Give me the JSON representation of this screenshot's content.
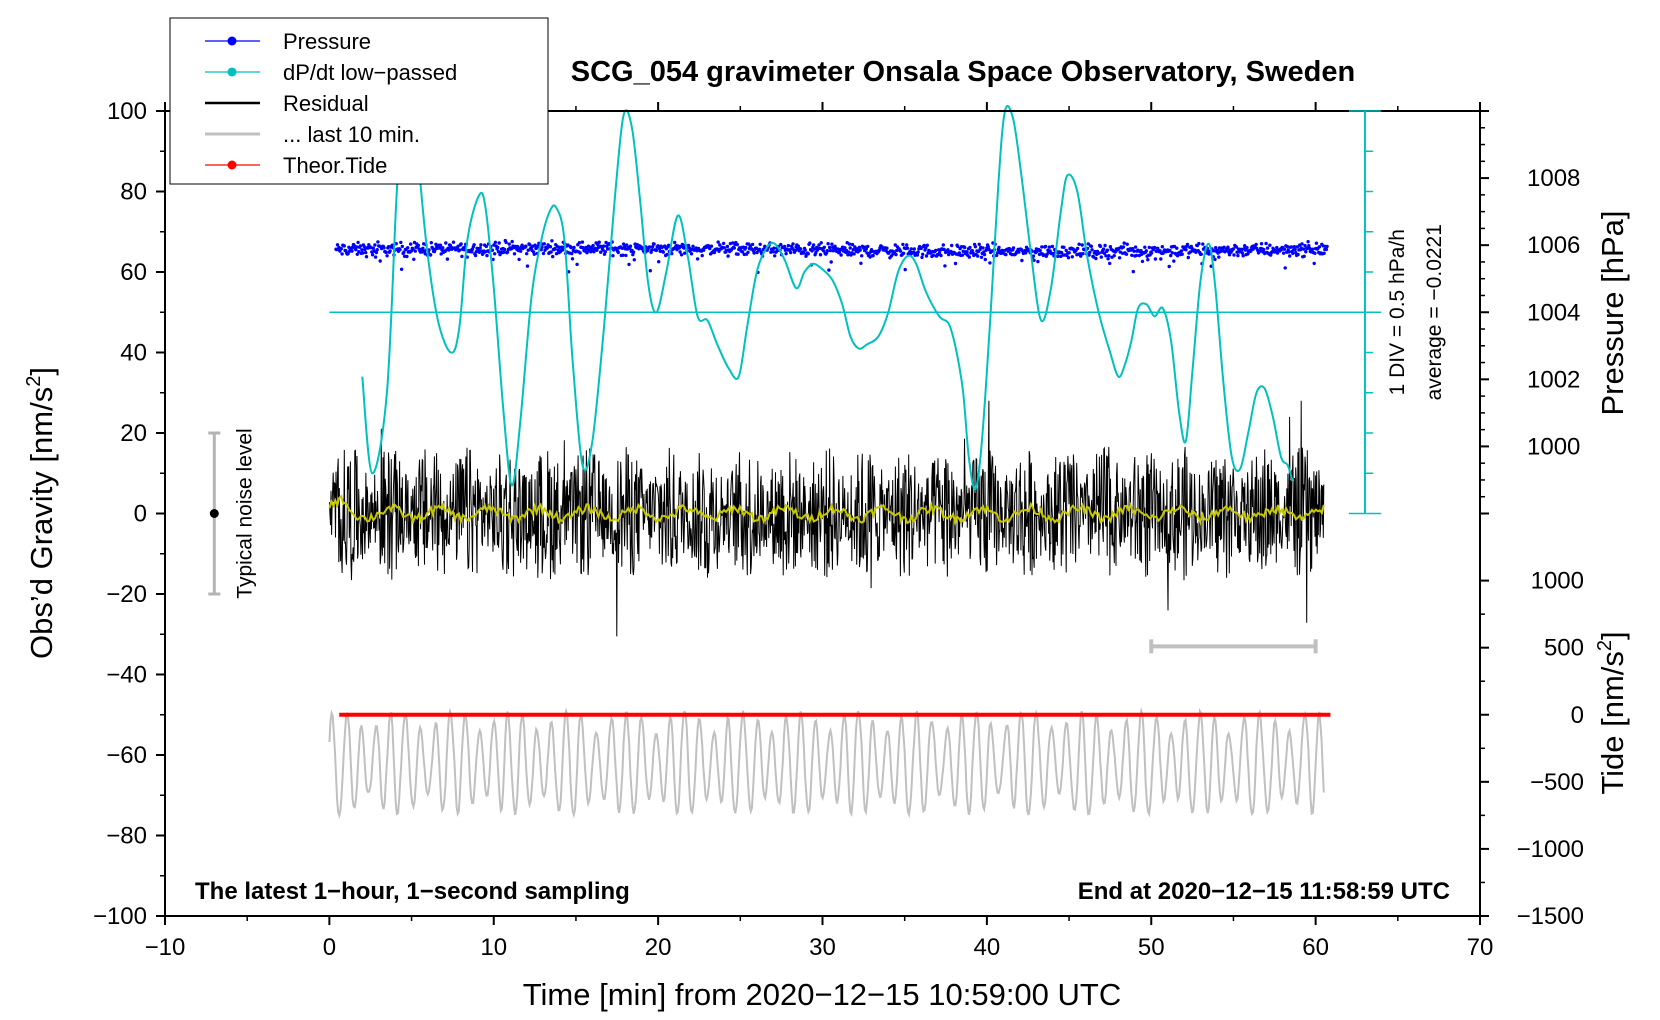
{
  "chart_data": {
    "type": "line",
    "title": "SCG_054 gravimeter Onsala Space Observatory, Sweden",
    "xlabel": "Time [min] from 2020−12−15 10:59:00 UTC",
    "ylabel": "Obs’d Gravity [nm/s²]",
    "ylabel_parts": {
      "main": "Obs’d Gravity [nm/s",
      "sup": "2",
      "end": "]"
    },
    "y2label_pressure": "Pressure [hPa]",
    "y2label_tide": "Tide [nm/s²]",
    "y2label_tide_parts": {
      "main": "Tide [nm/s",
      "sup": "2",
      "end": "]"
    },
    "xlim": [
      -10,
      70
    ],
    "ylim": [
      -100,
      100
    ],
    "x_ticks": [
      -10,
      0,
      10,
      20,
      30,
      40,
      50,
      60,
      70
    ],
    "x_tick_labels": [
      "−10",
      "0",
      "10",
      "20",
      "30",
      "40",
      "50",
      "60",
      "70"
    ],
    "y_ticks": [
      -100,
      -80,
      -60,
      -40,
      -20,
      0,
      20,
      40,
      60,
      80,
      100
    ],
    "y_tick_labels": [
      "−100",
      "−80",
      "−60",
      "−40",
      "−20",
      "0",
      "20",
      "40",
      "60",
      "80",
      "100"
    ],
    "pressure_axis": {
      "ticks": [
        1000,
        1002,
        1004,
        1006,
        1008
      ],
      "tick_labels": [
        "1000",
        "1002",
        "1004",
        "1006",
        "1008"
      ],
      "gravity_at_1004": 50,
      "gravity_per_hPa": 8.333
    },
    "tide_axis": {
      "ticks": [
        -1500,
        -1000,
        -500,
        0,
        500,
        1000
      ],
      "tick_labels": [
        "−1500",
        "−1000",
        "−500",
        "0",
        "500",
        "1000"
      ],
      "gravity_at_0": -50,
      "gravity_per_unit": 0.03333
    },
    "dpdt_scale": {
      "label": "1 DIV = 0.5 hPa/h",
      "average_label": "average = −0.0221",
      "x": 63,
      "y_range": [
        0,
        100
      ],
      "baseline": 50
    },
    "bottom_left_note": "The latest 1−hour, 1−second sampling",
    "bottom_right_note": "End at 2020−12−15 11:58:59 UTC",
    "noise_bar": {
      "label": "Typical noise level",
      "x": -7,
      "center": 0,
      "half_range": 20
    },
    "last10_bar": {
      "x_start": 50,
      "x_end": 60,
      "y": -33
    },
    "legend": [
      {
        "label": "Pressure",
        "color": "#0000ff",
        "marker": true
      },
      {
        "label": "dP/dt low−passed",
        "color": "#00c0c0",
        "marker": true
      },
      {
        "label": "Residual",
        "color": "#000000",
        "marker": false
      },
      {
        "label": "... last 10 min.",
        "color": "#c0c0c0",
        "marker": false
      },
      {
        "label": "Theor.Tide",
        "color": "#ff0000",
        "marker": true
      }
    ],
    "series": [
      {
        "name": "dP/dt low−passed",
        "color": "#00c0c0",
        "x": [
          2.0,
          2.6,
          3.5,
          4.1,
          4.6,
          5.0,
          5.4,
          5.9,
          6.6,
          7.4,
          7.9,
          8.4,
          9.1,
          9.5,
          10.0,
          10.6,
          11.1,
          11.6,
          12.3,
          12.9,
          13.4,
          13.8,
          14.3,
          14.8,
          15.4,
          16.0,
          16.7,
          17.4,
          17.9,
          18.4,
          18.9,
          19.4,
          19.9,
          20.5,
          21.2,
          21.8,
          22.4,
          23.0,
          23.6,
          24.3,
          24.9,
          25.4,
          26.0,
          26.6,
          27.1,
          27.7,
          28.4,
          28.9,
          29.4,
          29.9,
          30.6,
          31.2,
          31.7,
          32.2,
          32.7,
          33.4,
          34.0,
          34.6,
          35.2,
          35.7,
          36.3,
          37.1,
          37.8,
          38.5,
          38.9,
          39.3,
          39.7,
          40.2,
          40.7,
          41.1,
          41.6,
          42.1,
          42.7,
          43.3,
          43.9,
          44.5,
          44.9,
          45.5,
          46.1,
          46.8,
          47.5,
          48.0,
          48.4,
          48.8,
          49.2,
          49.7,
          50.2,
          50.7,
          51.2,
          51.7,
          52.1,
          52.5,
          53.0,
          53.5,
          53.9,
          54.4,
          54.9,
          55.4,
          55.9,
          56.4,
          56.9,
          57.4,
          57.9,
          58.3,
          58.6
        ],
        "values": [
          34,
          10,
          30,
          80,
          106,
          100,
          88,
          67,
          48,
          40,
          46,
          68,
          79,
          76,
          56,
          25,
          7,
          22,
          54,
          68,
          75,
          76,
          68,
          38,
          12,
          18,
          46,
          80,
          99,
          96,
          78,
          57,
          50,
          60,
          74,
          64,
          49,
          48,
          42,
          36,
          34,
          46,
          60,
          66,
          67,
          63,
          56,
          60,
          62,
          61,
          58,
          52,
          44,
          41,
          42,
          44,
          50,
          60,
          64,
          62,
          55,
          49,
          46,
          32,
          14,
          6,
          18,
          48,
          82,
          100,
          98,
          84,
          64,
          48,
          56,
          75,
          84,
          80,
          64,
          50,
          40,
          34,
          37,
          43,
          51,
          52,
          49,
          51,
          43,
          25,
          18,
          35,
          58,
          67,
          56,
          32,
          14,
          11,
          20,
          30,
          31,
          24,
          14,
          12,
          8
        ]
      },
      {
        "name": "Pressure",
        "color": "#0000ff",
        "x": [
          0.4,
          60.7
        ],
        "level": 65.5,
        "spread": 1.6
      },
      {
        "name": "Residual",
        "color": "#000000",
        "x": [
          0,
          60.5
        ],
        "level": 0,
        "amplitude": 14
      },
      {
        "name": "Residual smoothed",
        "color": "#c8c800",
        "x": [
          0,
          60.5
        ],
        "level": 0,
        "amplitude": 2.5
      },
      {
        "name": "Theor.Tide",
        "color": "#ff0000",
        "x": [
          0.6,
          60.9
        ],
        "level": -50
      },
      {
        "name": "... last 10 min.",
        "color": "#c0c0c0",
        "x": [
          0,
          60.5
        ],
        "level": -62,
        "amplitude": 13
      }
    ]
  }
}
